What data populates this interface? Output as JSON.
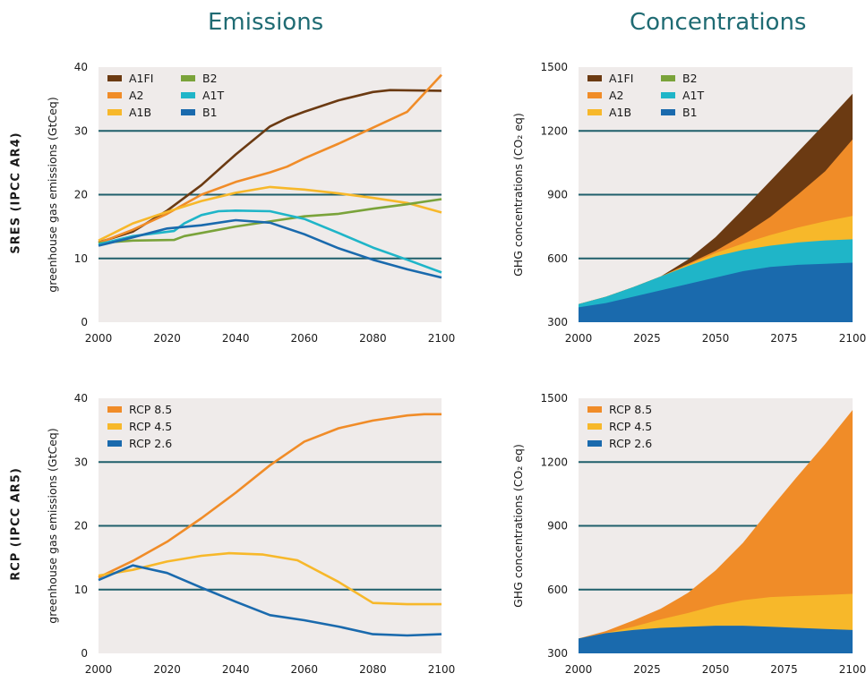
{
  "headers": {
    "left": "Emissions",
    "right": "Concentrations"
  },
  "row_labels": {
    "top": "SRES (IPCC AR4)",
    "bottom": "RCP (IPCC AR5)"
  },
  "colors": {
    "plot_bg": "#efebea",
    "gridline": "#1f5f6b",
    "A1FI": "#6b3a12",
    "A2": "#f08c28",
    "A1B": "#f7b82a",
    "B2": "#7aa33a",
    "A1T": "#1fb5c8",
    "B1": "#1a6aad",
    "RCP 8.5": "#f08c28",
    "RCP 4.5": "#f7b82a",
    "RCP 2.6": "#1a6aad"
  },
  "chart_data": [
    {
      "type": "line",
      "title": "",
      "xlabel": "",
      "ylabel": "greenhouse gas emissions (GtCeq)",
      "xlim": [
        2000,
        2100
      ],
      "ylim": [
        0,
        40
      ],
      "xticks": [
        "2000",
        "2020",
        "2040",
        "2060",
        "2080",
        "2100"
      ],
      "yticks": [
        "0",
        "10",
        "20",
        "30",
        "40"
      ],
      "legend": "top-left",
      "series": [
        {
          "name": "A1FI",
          "x": [
            2000,
            2010,
            2020,
            2030,
            2040,
            2050,
            2055,
            2060,
            2070,
            2080,
            2085,
            2100
          ],
          "values": [
            12.5,
            14.2,
            17.5,
            21.5,
            26.3,
            30.7,
            32.0,
            33.0,
            34.8,
            36.1,
            36.4,
            36.3
          ]
        },
        {
          "name": "A2",
          "x": [
            2000,
            2010,
            2020,
            2030,
            2040,
            2050,
            2055,
            2060,
            2070,
            2080,
            2090,
            2100
          ],
          "values": [
            12.4,
            14.5,
            17.0,
            20.0,
            22.0,
            23.5,
            24.4,
            25.7,
            28.0,
            30.5,
            33.0,
            38.8
          ]
        },
        {
          "name": "A1B",
          "x": [
            2000,
            2010,
            2020,
            2030,
            2040,
            2050,
            2055,
            2060,
            2070,
            2080,
            2090,
            2100
          ],
          "values": [
            12.8,
            15.5,
            17.3,
            19.0,
            20.3,
            21.2,
            21.0,
            20.8,
            20.2,
            19.5,
            18.7,
            17.2
          ]
        },
        {
          "name": "B2",
          "x": [
            2000,
            2010,
            2022,
            2025,
            2030,
            2040,
            2050,
            2060,
            2070,
            2080,
            2090,
            2100
          ],
          "values": [
            12.4,
            12.8,
            12.9,
            13.5,
            14.0,
            15.0,
            15.8,
            16.6,
            17.0,
            17.8,
            18.5,
            19.3
          ]
        },
        {
          "name": "A1T",
          "x": [
            2000,
            2010,
            2022,
            2025,
            2030,
            2035,
            2040,
            2050,
            2060,
            2070,
            2080,
            2090,
            2100
          ],
          "values": [
            12.2,
            13.5,
            14.3,
            15.5,
            16.8,
            17.4,
            17.5,
            17.4,
            16.2,
            14.0,
            11.7,
            9.8,
            7.8
          ]
        },
        {
          "name": "B1",
          "x": [
            2000,
            2010,
            2020,
            2030,
            2040,
            2050,
            2060,
            2070,
            2080,
            2090,
            2100
          ],
          "values": [
            12.0,
            13.3,
            14.7,
            15.2,
            16.0,
            15.6,
            13.8,
            11.6,
            9.8,
            8.3,
            7.0
          ]
        }
      ]
    },
    {
      "type": "area",
      "title": "",
      "xlabel": "",
      "ylabel": "GHG concentrations (CO₂ eq)",
      "xlim": [
        2000,
        2100
      ],
      "ylim": [
        300,
        1500
      ],
      "xticks": [
        "2000",
        "2025",
        "2050",
        "2075",
        "2100"
      ],
      "yticks": [
        "300",
        "600",
        "900",
        "1200",
        "1500"
      ],
      "legend": "top-left",
      "x": [
        2000,
        2010,
        2020,
        2030,
        2040,
        2050,
        2060,
        2070,
        2080,
        2090,
        2100
      ],
      "series": [
        {
          "name": "A1FI",
          "values": [
            385,
            420,
            465,
            515,
            595,
            700,
            830,
            965,
            1100,
            1235,
            1375
          ]
        },
        {
          "name": "A2",
          "values": [
            385,
            420,
            465,
            515,
            575,
            635,
            710,
            795,
            900,
            1010,
            1160
          ]
        },
        {
          "name": "A1B",
          "values": [
            385,
            420,
            465,
            515,
            570,
            625,
            670,
            710,
            745,
            775,
            800
          ]
        },
        {
          "name": "A1T",
          "values": [
            385,
            420,
            465,
            515,
            565,
            610,
            640,
            660,
            675,
            685,
            690
          ]
        },
        {
          "name": "B1",
          "values": [
            370,
            390,
            420,
            450,
            480,
            510,
            540,
            560,
            570,
            575,
            580
          ]
        }
      ]
    },
    {
      "type": "line",
      "title": "",
      "xlabel": "",
      "ylabel": "greenhouse gas emissions (GtCeq)",
      "xlim": [
        2000,
        2100
      ],
      "ylim": [
        0,
        40
      ],
      "xticks": [
        "2000",
        "2020",
        "2040",
        "2060",
        "2080",
        "2100"
      ],
      "yticks": [
        "0",
        "10",
        "20",
        "30",
        "40"
      ],
      "legend": "top-left",
      "series": [
        {
          "name": "RCP 8.5",
          "x": [
            2000,
            2010,
            2020,
            2030,
            2040,
            2050,
            2060,
            2070,
            2080,
            2090,
            2095,
            2100
          ],
          "values": [
            11.9,
            14.5,
            17.5,
            21.2,
            25.2,
            29.5,
            33.2,
            35.3,
            36.5,
            37.3,
            37.5,
            37.5
          ]
        },
        {
          "name": "RCP 4.5",
          "x": [
            2000,
            2010,
            2020,
            2030,
            2038,
            2048,
            2058,
            2070,
            2080,
            2090,
            2100
          ],
          "values": [
            12.2,
            13.1,
            14.4,
            15.3,
            15.7,
            15.5,
            14.6,
            11.2,
            7.9,
            7.7,
            7.7
          ]
        },
        {
          "name": "RCP 2.6",
          "x": [
            2000,
            2010,
            2020,
            2030,
            2040,
            2050,
            2060,
            2070,
            2080,
            2090,
            2100
          ],
          "values": [
            11.5,
            13.8,
            12.6,
            10.3,
            8.1,
            6.0,
            5.2,
            4.2,
            3.0,
            2.8,
            3.0
          ]
        }
      ]
    },
    {
      "type": "area",
      "title": "",
      "xlabel": "",
      "ylabel": "GHG concentrations (CO₂ eq)",
      "xlim": [
        2000,
        2100
      ],
      "ylim": [
        300,
        1500
      ],
      "xticks": [
        "2000",
        "2025",
        "2050",
        "2075",
        "2100"
      ],
      "yticks": [
        "300",
        "600",
        "900",
        "1200",
        "1500"
      ],
      "legend": "top-left",
      "x": [
        2000,
        2010,
        2020,
        2030,
        2040,
        2050,
        2060,
        2070,
        2080,
        2090,
        2100
      ],
      "series": [
        {
          "name": "RCP 8.5",
          "values": [
            370,
            405,
            455,
            510,
            585,
            690,
            820,
            980,
            1135,
            1285,
            1445
          ]
        },
        {
          "name": "RCP 4.5",
          "values": [
            370,
            395,
            425,
            460,
            490,
            525,
            550,
            565,
            570,
            575,
            580
          ]
        },
        {
          "name": "RCP 2.6",
          "values": [
            370,
            395,
            410,
            420,
            425,
            430,
            430,
            425,
            420,
            415,
            410
          ]
        }
      ]
    }
  ]
}
